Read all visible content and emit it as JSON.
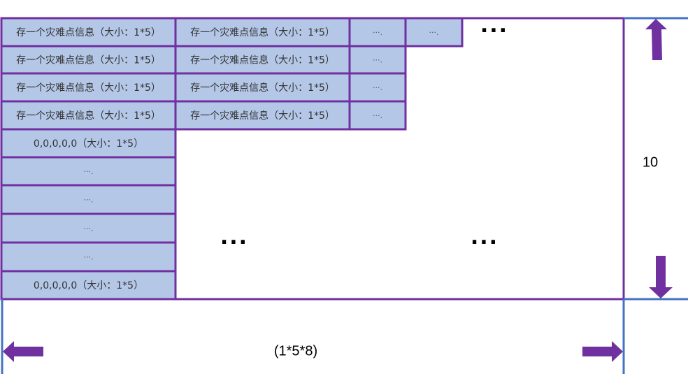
{
  "cells": {
    "info": "存一个灾难点信息（大小：1*5）",
    "zero": "0,0,0,0,0（大小：1*5）",
    "ellipsis_small": "···."
  },
  "ellipsis_large": "···",
  "labels": {
    "height": "10",
    "width": "(1*5*8)"
  },
  "colors": {
    "cell_fill": "#b4c7e7",
    "border": "#7030a0",
    "dimension_line": "#4472c4",
    "arrow": "#7030a0"
  }
}
